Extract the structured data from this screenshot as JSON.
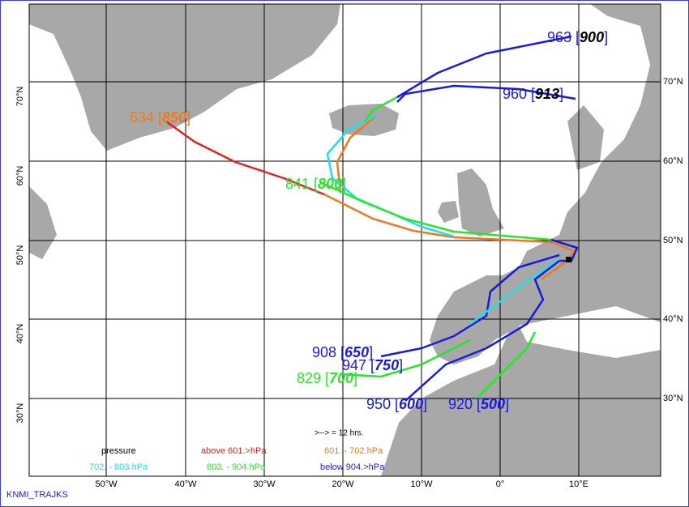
{
  "map": {
    "longitude_labels": [
      "50°W",
      "40°W",
      "30°W",
      "20°W",
      "10°W",
      "0°",
      "10°E"
    ],
    "latitude_labels": [
      "70°N",
      "60°N",
      "50°N",
      "40°N",
      "30°N"
    ],
    "trajectory_labels": [
      {
        "prefix": "963 [",
        "level": "900",
        "suffix": "]",
        "color": "#1a1adc"
      },
      {
        "prefix": "960 [",
        "level": "913",
        "suffix": "]",
        "color": "#1a1adc"
      },
      {
        "prefix": "634 [",
        "level": "850",
        "suffix": "]",
        "color": "#f07820"
      },
      {
        "prefix": "841 [",
        "level": "800",
        "suffix": "]",
        "color": "#28e628"
      },
      {
        "prefix": "908 [",
        "level": "650",
        "suffix": "]",
        "color": "#1a1adc"
      },
      {
        "prefix": "947 [",
        "level": "750",
        "suffix": "]",
        "color": "#1a1adc"
      },
      {
        "prefix": "829 [",
        "level": "700",
        "suffix": "]",
        "color": "#28e628"
      },
      {
        "prefix": "950 [",
        "level": "600",
        "suffix": "]",
        "color": "#1a1adc"
      },
      {
        "prefix": "920 [",
        "level": "500",
        "suffix": "]",
        "color": "#1a1adc"
      }
    ],
    "legend": {
      "title": "pressure",
      "time_step": ">--> = 12 hrs.",
      "entries": [
        {
          "label": "above  601.>hPa",
          "color": "#e61e1e"
        },
        {
          "label": "601.  -   702.hPa",
          "color": "#f07820"
        },
        {
          "label": "702.  -   803.hPa",
          "color": "#1ee1e6"
        },
        {
          "label": "803.  -   904.hPa",
          "color": "#28e628"
        },
        {
          "label": "below   904.>hPa",
          "color": "#1a1adc"
        }
      ]
    },
    "footer": "KNMI_TRAJKS"
  }
}
